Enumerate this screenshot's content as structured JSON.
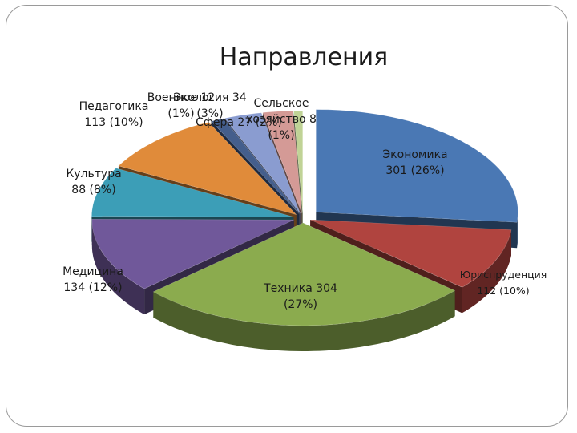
{
  "chart_data": {
    "type": "pie",
    "title": "Направления",
    "slices": [
      {
        "name": "Экономика",
        "value": 301,
        "percent": "26%",
        "label": [
          "Экономика",
          "301 (26%)"
        ],
        "color": "#4a78b4"
      },
      {
        "name": "Юриспруденция",
        "value": 112,
        "percent": "10%",
        "label": [
          "Юриспруденция",
          "112 (10%)"
        ],
        "color": "#b0443f"
      },
      {
        "name": "Техника",
        "value": 304,
        "percent": "27%",
        "label": [
          "Техника 304",
          "(27%)"
        ],
        "color": "#8bab4e"
      },
      {
        "name": "Медицина",
        "value": 134,
        "percent": "12%",
        "label": [
          "Медицина",
          "134 (12%)"
        ],
        "color": "#70589a"
      },
      {
        "name": "Культура",
        "value": 88,
        "percent": "8%",
        "label": [
          "Культура",
          "88 (8%)"
        ],
        "color": "#3c9eb7"
      },
      {
        "name": "Педагогика",
        "value": 113,
        "percent": "10%",
        "label": [
          "Педагогика",
          "113 (10%)"
        ],
        "color": "#e08b3a"
      },
      {
        "name": "Военное",
        "value": 12,
        "percent": "1%",
        "label": [
          "Военное 12",
          "(1%)"
        ],
        "color": "#445e8c"
      },
      {
        "name": "Экология",
        "value": 34,
        "percent": "3%",
        "label": [
          "Экология 34",
          "(3%)"
        ],
        "color": "#8a9cd0"
      },
      {
        "name": "Сфера",
        "value": 27,
        "percent": "2%",
        "label": [
          "Сфера 27 (2%)"
        ],
        "color": "#d49a96"
      },
      {
        "name": "Сельское хозяйство",
        "value": 8,
        "percent": "1%",
        "label": [
          "Сельское",
          "хозяйство 8",
          "(1%)"
        ],
        "color": "#c0d396"
      }
    ]
  }
}
